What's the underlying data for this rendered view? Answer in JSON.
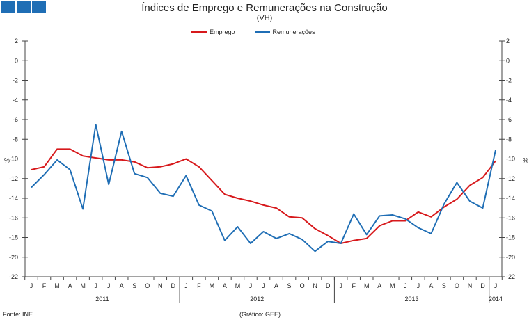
{
  "colors": {
    "emprego": "#d7191c",
    "remuneracoes": "#1f6eb5",
    "axis": "#444444",
    "logo": "#1f6eb5"
  },
  "footer": {
    "source": "Fonte: INE",
    "credit": "(Gráfico: GEE)"
  },
  "chart_data": {
    "type": "line",
    "title": "Índices de Emprego e Remunerações na Construção",
    "subtitle": "(VH)",
    "ylabel": "%",
    "ylabel_right": "%",
    "ylim": [
      -22,
      2
    ],
    "yticks": [
      2,
      0,
      -2,
      -4,
      -6,
      -8,
      -10,
      -12,
      -14,
      -16,
      -18,
      -20,
      -22
    ],
    "month_labels": [
      "J",
      "F",
      "M",
      "A",
      "M",
      "J",
      "J",
      "A",
      "S",
      "O",
      "N",
      "D",
      "J",
      "F",
      "M",
      "A",
      "M",
      "J",
      "J",
      "A",
      "S",
      "O",
      "N",
      "D",
      "J",
      "F",
      "M",
      "A",
      "M",
      "J",
      "J",
      "A",
      "S",
      "O",
      "N",
      "D",
      "J"
    ],
    "year_labels": [
      {
        "label": "2011",
        "center_index": 5.5
      },
      {
        "label": "2012",
        "center_index": 17.5
      },
      {
        "label": "2013",
        "center_index": 29.5
      },
      {
        "label": "2014",
        "center_index": 36
      }
    ],
    "series": [
      {
        "name": "Emprego",
        "color": "#d7191c",
        "values": [
          -11.1,
          -10.8,
          -9.0,
          -9.0,
          -9.7,
          -9.9,
          -10.1,
          -10.1,
          -10.3,
          -10.9,
          -10.8,
          -10.5,
          -10.0,
          -10.8,
          -12.2,
          -13.6,
          -14.0,
          -14.3,
          -14.7,
          -15.0,
          -15.9,
          -16.0,
          -17.1,
          -17.8,
          -18.6,
          -18.3,
          -18.1,
          -16.8,
          -16.3,
          -16.3,
          -15.4,
          -15.9,
          -14.9,
          -14.1,
          -12.7,
          -11.9,
          -10.2
        ]
      },
      {
        "name": "Remunerações",
        "color": "#1f6eb5",
        "values": [
          -12.9,
          -11.6,
          -10.1,
          -11.1,
          -15.1,
          -6.5,
          -12.6,
          -7.2,
          -11.5,
          -11.9,
          -13.5,
          -13.8,
          -11.7,
          -14.7,
          -15.3,
          -18.3,
          -16.9,
          -18.6,
          -17.4,
          -18.1,
          -17.6,
          -18.2,
          -19.4,
          -18.4,
          -18.6,
          -15.6,
          -17.7,
          -15.8,
          -15.7,
          -16.1,
          -17.0,
          -17.6,
          -14.6,
          -12.4,
          -14.3,
          -15.0,
          -9.1
        ]
      }
    ]
  }
}
